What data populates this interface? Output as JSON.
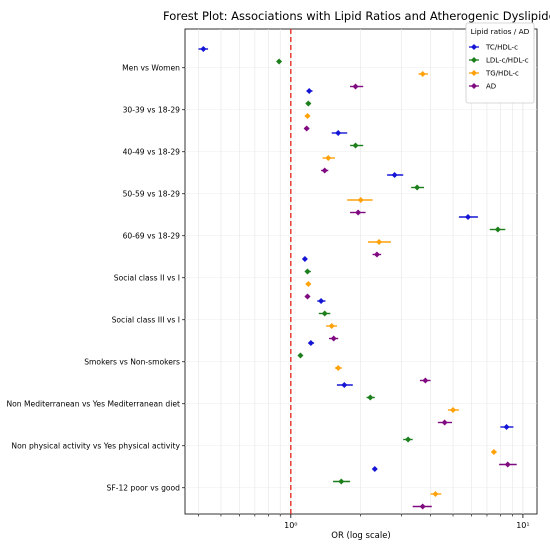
{
  "chart_data": {
    "type": "forest",
    "title": "Forest Plot: Associations with Lipid Ratios and Atherogenic Dyslipidemia",
    "xlabel": "OR (log scale)",
    "ylabel": "",
    "x_scale": "log",
    "xlim": [
      0.35,
      11.5
    ],
    "x_ticks": [
      {
        "value": 1,
        "label": "10⁰"
      },
      {
        "value": 10,
        "label": "10¹"
      }
    ],
    "reference_line": {
      "value": 1,
      "style": "dashed",
      "color": "#e8211b"
    },
    "grid": true,
    "legend": {
      "title": "Lipid ratios / AD",
      "placement": "top-right"
    },
    "series": [
      {
        "name": "TC/HDL-c",
        "color": "#1515d6"
      },
      {
        "name": "LDL-c/HDL-c",
        "color": "#1c7f1c"
      },
      {
        "name": "TG/HDL-c",
        "color": "#ffa20a"
      },
      {
        "name": "AD",
        "color": "#800a80"
      }
    ],
    "categories": [
      "Men vs Women",
      "30-39 vs 18-29",
      "40-49 vs 18-29",
      "50-59 vs 18-29",
      "60-69 vs 18-29",
      "Social class II vs I",
      "Social class III vs I",
      "Smokers vs Non-smokers",
      "Non Mediterranean vs Yes Mediterranean diet",
      "Non physical activity vs Yes physical activity",
      "SF-12 poor vs good"
    ],
    "estimates": [
      [
        {
          "or": 0.42,
          "lo": 0.4,
          "hi": 0.44
        },
        {
          "or": 0.89,
          "lo": 0.87,
          "hi": 0.91
        },
        {
          "or": 3.7,
          "lo": 3.55,
          "hi": 3.9
        },
        {
          "or": 1.9,
          "lo": 1.8,
          "hi": 2.05
        }
      ],
      [
        {
          "or": 1.2,
          "lo": 1.17,
          "hi": 1.24
        },
        {
          "or": 1.19,
          "lo": 1.16,
          "hi": 1.22
        },
        {
          "or": 1.18,
          "lo": 1.15,
          "hi": 1.21
        },
        {
          "or": 1.17,
          "lo": 1.14,
          "hi": 1.2
        }
      ],
      [
        {
          "or": 1.6,
          "lo": 1.5,
          "hi": 1.75
        },
        {
          "or": 1.9,
          "lo": 1.8,
          "hi": 2.05
        },
        {
          "or": 1.45,
          "lo": 1.37,
          "hi": 1.55
        },
        {
          "or": 1.4,
          "lo": 1.35,
          "hi": 1.45
        }
      ],
      [
        {
          "or": 2.8,
          "lo": 2.6,
          "hi": 3.05
        },
        {
          "or": 3.5,
          "lo": 3.3,
          "hi": 3.75
        },
        {
          "or": 2.0,
          "lo": 1.75,
          "hi": 2.25
        },
        {
          "or": 1.95,
          "lo": 1.8,
          "hi": 2.1
        }
      ],
      [
        {
          "or": 5.8,
          "lo": 5.3,
          "hi": 6.4
        },
        {
          "or": 7.8,
          "lo": 7.2,
          "hi": 8.4
        },
        {
          "or": 2.4,
          "lo": 2.15,
          "hi": 2.7
        },
        {
          "or": 2.35,
          "lo": 2.25,
          "hi": 2.45
        }
      ],
      [
        {
          "or": 1.15,
          "lo": 1.13,
          "hi": 1.17
        },
        {
          "or": 1.18,
          "lo": 1.15,
          "hi": 1.22
        },
        {
          "or": 1.19,
          "lo": 1.16,
          "hi": 1.22
        },
        {
          "or": 1.18,
          "lo": 1.15,
          "hi": 1.21
        }
      ],
      [
        {
          "or": 1.35,
          "lo": 1.3,
          "hi": 1.41
        },
        {
          "or": 1.4,
          "lo": 1.32,
          "hi": 1.48
        },
        {
          "or": 1.5,
          "lo": 1.42,
          "hi": 1.58
        },
        {
          "or": 1.53,
          "lo": 1.46,
          "hi": 1.6
        }
      ],
      [
        {
          "or": 1.22,
          "lo": 1.19,
          "hi": 1.26
        },
        {
          "or": 1.1,
          "lo": 1.08,
          "hi": 1.12
        },
        {
          "or": 1.6,
          "lo": 1.55,
          "hi": 1.66
        },
        {
          "or": 3.8,
          "lo": 3.6,
          "hi": 4.0
        }
      ],
      [
        {
          "or": 1.7,
          "lo": 1.58,
          "hi": 1.85
        },
        {
          "or": 2.2,
          "lo": 2.12,
          "hi": 2.3
        },
        {
          "or": 5.0,
          "lo": 4.75,
          "hi": 5.3
        },
        {
          "or": 4.6,
          "lo": 4.3,
          "hi": 4.95
        }
      ],
      [
        {
          "or": 8.5,
          "lo": 8.0,
          "hi": 9.1
        },
        {
          "or": 3.2,
          "lo": 3.05,
          "hi": 3.35
        },
        {
          "or": 7.5,
          "lo": 7.3,
          "hi": 7.7
        },
        {
          "or": 8.6,
          "lo": 7.9,
          "hi": 9.4
        }
      ],
      [
        {
          "or": 2.3,
          "lo": 2.25,
          "hi": 2.35
        },
        {
          "or": 1.65,
          "lo": 1.52,
          "hi": 1.8
        },
        {
          "or": 4.2,
          "lo": 4.0,
          "hi": 4.45
        },
        {
          "or": 3.7,
          "lo": 3.35,
          "hi": 4.05
        }
      ]
    ]
  }
}
